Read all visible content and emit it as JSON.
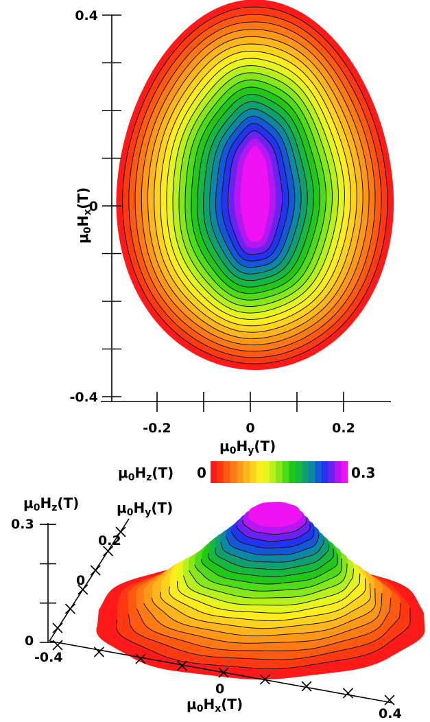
{
  "chart_data": [
    {
      "id": "top",
      "type": "heatmap",
      "title": "",
      "xlabel": {
        "prefix": "μ",
        "sub": "0",
        "main": "H",
        "sub2": "y",
        "unit": "(T)"
      },
      "ylabel": {
        "prefix": "μ",
        "sub": "0",
        "main": "H",
        "sub2": "x",
        "unit": "(T)"
      },
      "xlim": [
        -0.3,
        0.3
      ],
      "ylim": [
        -0.4,
        0.4
      ],
      "xticks": [
        -0.2,
        -0.1,
        0,
        0.1,
        0.2
      ],
      "yticks": [
        -0.4,
        -0.3,
        -0.2,
        -0.1,
        0,
        0.1,
        0.2,
        0.3,
        0.4
      ],
      "xtick_labels": [
        "-0.2",
        "",
        "0",
        "",
        "0.2"
      ],
      "ytick_labels": [
        "-0.4",
        "",
        "",
        "",
        "0",
        "",
        "",
        "",
        "0.4"
      ],
      "center": [
        0.01,
        0.03
      ],
      "max_value": 0.3,
      "contour_levels": [
        0.0,
        0.02,
        0.04,
        0.06,
        0.08,
        0.1,
        0.12,
        0.14,
        0.16,
        0.18,
        0.2,
        0.22,
        0.24,
        0.26,
        0.28
      ],
      "grid": false
    },
    {
      "id": "bottom",
      "type": "area",
      "projection": "3d-surface",
      "title": "",
      "xlabel": {
        "prefix": "μ",
        "sub": "0",
        "main": "H",
        "sub2": "x",
        "unit": "(T)"
      },
      "ylabel": {
        "prefix": "μ",
        "sub": "0",
        "main": "H",
        "sub2": "y",
        "unit": "(T)"
      },
      "zlabel": {
        "prefix": "μ",
        "sub": "0",
        "main": "H",
        "sub2": "z",
        "unit": "(T)"
      },
      "x_tick_labels": [
        "-0.4",
        "0",
        "0.4"
      ],
      "y_tick_labels": [
        "0",
        "0.2"
      ],
      "z_tick_labels": [
        "0",
        "0.3"
      ],
      "zlim": [
        0,
        0.3
      ],
      "peak": 0.3,
      "grid": false
    }
  ],
  "colorbar": {
    "label": {
      "prefix": "μ",
      "sub": "0",
      "main": "H",
      "sub2": "z",
      "unit": "(T)"
    },
    "min_label": "0",
    "max_label": "0.3",
    "range": [
      0,
      0.3
    ],
    "colors": [
      "#ff1a1a",
      "#ff3a12",
      "#ff5a10",
      "#ff7a14",
      "#ff9818",
      "#ffb61c",
      "#ffd21e",
      "#ffec1e",
      "#e6f51e",
      "#b8f01c",
      "#86e81a",
      "#4fdc18",
      "#22c818",
      "#16b840",
      "#10a070",
      "#0c88a4",
      "#1458d8",
      "#2234f0",
      "#6a22f0",
      "#b418f0",
      "#ef12f2"
    ]
  }
}
